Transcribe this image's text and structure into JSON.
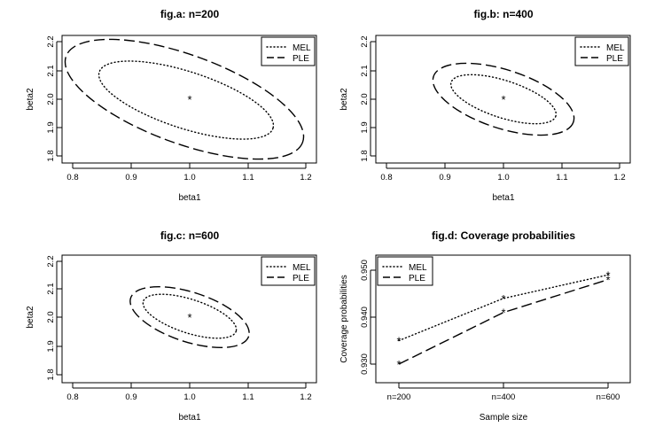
{
  "chart_data": [
    {
      "type": "contour",
      "title": "fig.a: n=200",
      "xlabel": "beta1",
      "ylabel": "beta2",
      "xlim": [
        0.78,
        1.22
      ],
      "ylim": [
        1.78,
        2.22
      ],
      "xticks": [
        "0.8",
        "0.9",
        "1.0",
        "1.1",
        "1.2"
      ],
      "yticks": [
        "1.8",
        "1.9",
        "2.0",
        "2.1",
        "2.2"
      ],
      "center": {
        "x": 1.0,
        "y": 2.0,
        "label": "*"
      },
      "legend": {
        "position": "top-right",
        "entries": [
          "MEL",
          "PLE"
        ]
      },
      "series": [
        {
          "name": "MEL",
          "style": "dotted",
          "center_x": 1.01,
          "center_y": 1.995,
          "x_range": [
            0.86,
            1.16
          ],
          "y_range": [
            1.84,
            2.15
          ]
        },
        {
          "name": "PLE",
          "style": "dashed",
          "center_x": 1.0,
          "center_y": 2.0,
          "x_range": [
            0.81,
            1.19
          ],
          "y_range": [
            1.81,
            2.19
          ]
        }
      ]
    },
    {
      "type": "contour",
      "title": "fig.b: n=400",
      "xlabel": "beta1",
      "ylabel": "beta2",
      "xlim": [
        0.78,
        1.22
      ],
      "ylim": [
        1.78,
        2.22
      ],
      "xticks": [
        "0.8",
        "0.9",
        "1.0",
        "1.1",
        "1.2"
      ],
      "yticks": [
        "1.8",
        "1.9",
        "2.0",
        "2.1",
        "2.2"
      ],
      "center": {
        "x": 1.0,
        "y": 2.0,
        "label": "*"
      },
      "legend": {
        "position": "top-right",
        "entries": [
          "MEL",
          "PLE"
        ]
      },
      "series": [
        {
          "name": "MEL",
          "style": "dotted",
          "center_x": 1.0,
          "center_y": 2.0,
          "x_range": [
            0.91,
            1.09
          ],
          "y_range": [
            1.91,
            2.09
          ]
        },
        {
          "name": "PLE",
          "style": "dashed",
          "center_x": 1.0,
          "center_y": 2.0,
          "x_range": [
            0.88,
            1.12
          ],
          "y_range": [
            1.88,
            2.12
          ]
        }
      ]
    },
    {
      "type": "contour",
      "title": "fig.c: n=600",
      "xlabel": "beta1",
      "ylabel": "beta2",
      "xlim": [
        0.78,
        1.22
      ],
      "ylim": [
        1.78,
        2.22
      ],
      "xticks": [
        "0.8",
        "0.9",
        "1.0",
        "1.1",
        "1.2"
      ],
      "yticks": [
        "1.8",
        "1.9",
        "2.0",
        "2.1",
        "2.2"
      ],
      "center": {
        "x": 1.0,
        "y": 2.0,
        "label": "*"
      },
      "legend": {
        "position": "top-right",
        "entries": [
          "MEL",
          "PLE"
        ]
      },
      "series": [
        {
          "name": "MEL",
          "style": "dotted",
          "center_x": 1.0,
          "center_y": 2.0,
          "x_range": [
            0.92,
            1.08
          ],
          "y_range": [
            1.92,
            2.09
          ]
        },
        {
          "name": "PLE",
          "style": "dashed",
          "center_x": 1.0,
          "center_y": 2.0,
          "x_range": [
            0.9,
            1.1
          ],
          "y_range": [
            1.9,
            2.11
          ]
        }
      ]
    },
    {
      "type": "line",
      "title": "fig.d:  Coverage probabilities",
      "xlabel": "Sample size",
      "ylabel": "Coverage probabilities",
      "categories": [
        "n=200",
        "n=400",
        "n=600"
      ],
      "ylim": [
        0.928,
        0.952
      ],
      "yticks": [
        "0.930",
        "0.940",
        "0.950"
      ],
      "legend": {
        "position": "top-left",
        "entries": [
          "MEL",
          "PLE"
        ]
      },
      "series": [
        {
          "name": "MEL",
          "style": "dotted",
          "values": [
            0.935,
            0.944,
            0.949
          ]
        },
        {
          "name": "PLE",
          "style": "dashed",
          "values": [
            0.93,
            0.941,
            0.948
          ]
        }
      ]
    }
  ]
}
